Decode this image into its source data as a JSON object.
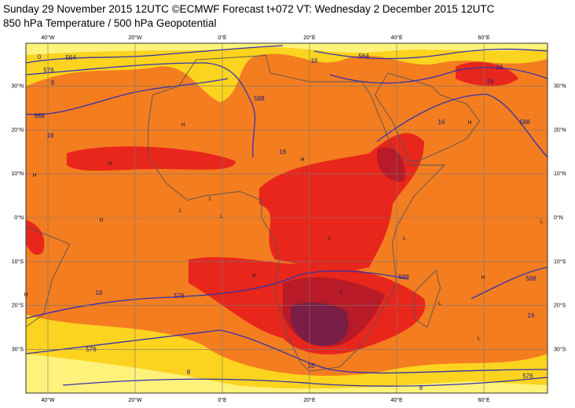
{
  "header": {
    "line1": "Sunday 29 November 2015 12UTC ©ECMWF Forecast t+072 VT: Wednesday 2 December 2015 12UTC",
    "line2": "850 hPa Temperature / 500 hPa Geopotential"
  },
  "map": {
    "longitudes": [
      "40°W",
      "20°W",
      "0°E",
      "20°E",
      "40°E",
      "60°E"
    ],
    "latitudes": [
      "30°N",
      "20°N",
      "10°N",
      "0°N",
      "10°S",
      "20°S",
      "30°S"
    ],
    "contour_labels": [
      "0",
      "564",
      "576",
      "8",
      "588",
      "16",
      "588",
      "16",
      "564",
      "16",
      "16",
      "588",
      "16",
      "16",
      "588",
      "16",
      "576",
      "576",
      "16",
      "16",
      "588",
      "8",
      "576",
      "8"
    ],
    "pressure_marks": [
      "H",
      "H",
      "H",
      "H",
      "L",
      "L",
      "H",
      "L",
      "L",
      "H",
      "L",
      "H",
      "L",
      "H",
      "L",
      "L",
      "H",
      "L"
    ]
  }
}
